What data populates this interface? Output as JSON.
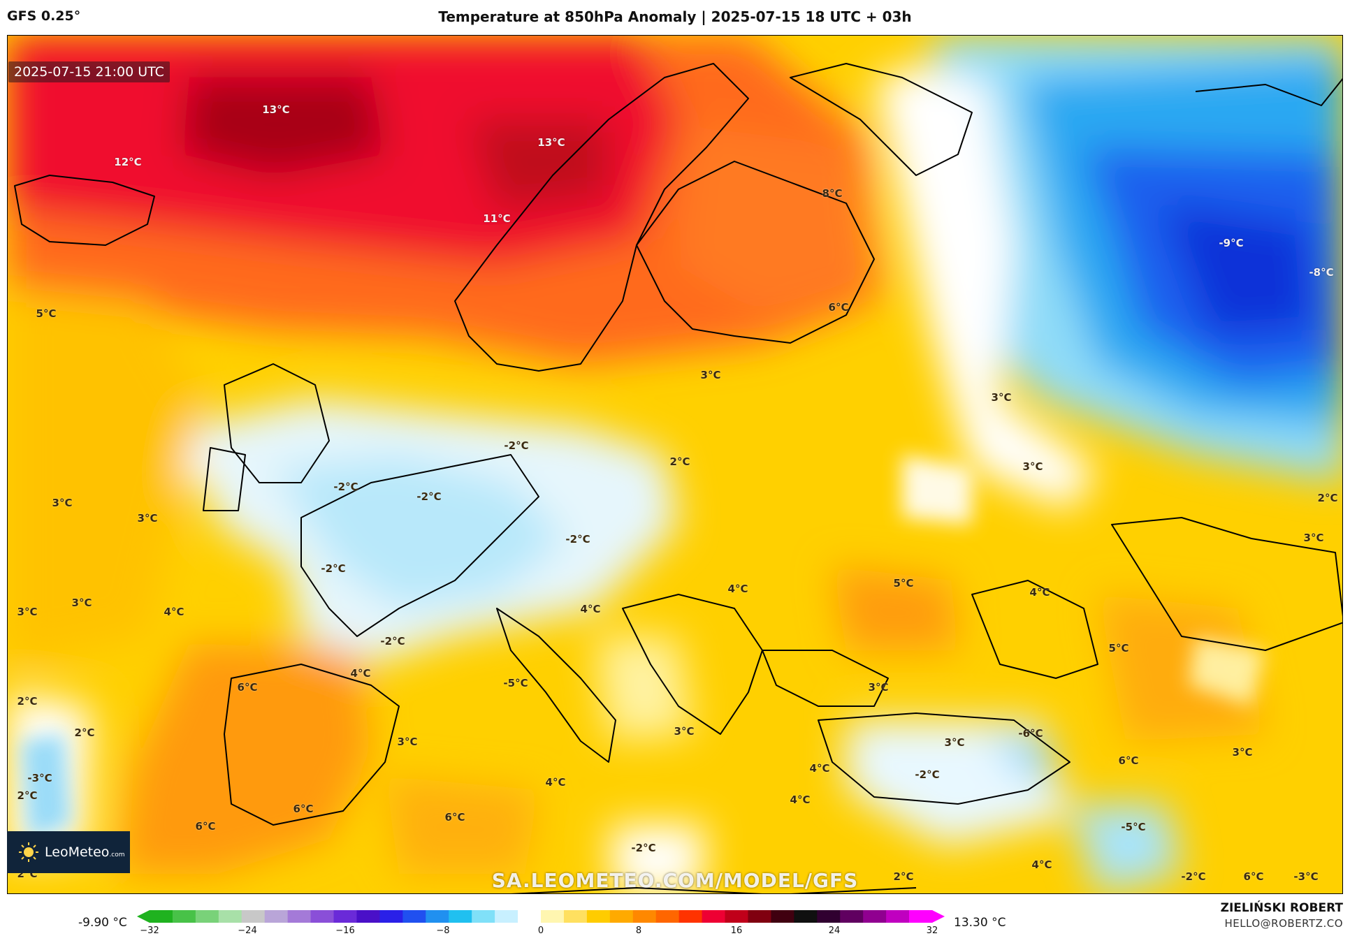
{
  "header": {
    "model": "GFS 0.25°",
    "title": "Temperature at 850hPa Anomaly | 2025-07-15 18 UTC + 03h"
  },
  "map": {
    "valid_time": "2025-07-15 21:00 UTC",
    "watermark": "SA.LEOMETEO.COM/MODEL/GFS",
    "labels": [
      "13°C",
      "13°C",
      "12°C",
      "11°C",
      "8°C",
      "6°C",
      "5°C",
      "-9°C",
      "-8°C",
      "3°C",
      "3°C",
      "3°C",
      "3°C",
      "2°C",
      "2°C",
      "-2°C",
      "-2°C",
      "-2°C",
      "-2°C",
      "-2°C",
      "-2°C",
      "3°C",
      "3°C",
      "3°C",
      "4°C",
      "3°C",
      "2°C",
      "2°C",
      "-3°C",
      "2°C",
      "2°C",
      "6°C",
      "4°C",
      "-5°C",
      "3°C",
      "4°C",
      "4°C",
      "5°C",
      "4°C",
      "5°C",
      "3°C",
      "3°C",
      "3°C",
      "-6°C",
      "-2°C",
      "6°C",
      "3°C",
      "6°C",
      "6°C",
      "6°C",
      "4°C",
      "4°C",
      "-2°C",
      "4°C",
      "-5°C",
      "2°C",
      "-2°C",
      "6°C",
      "-3°C",
      "4°C"
    ]
  },
  "logo": {
    "text": "LeoMeteo",
    "suffix": ".com"
  },
  "colorbar": {
    "min_label": "-9.90 °C",
    "max_label": "13.30 °C",
    "ticks": [
      "−32",
      "−24",
      "−16",
      "−8",
      "0",
      "8",
      "16",
      "24",
      "32"
    ],
    "colors": [
      "#1fb21f",
      "#48c248",
      "#79d279",
      "#a8e0a8",
      "#c8c8c8",
      "#b9a5d8",
      "#a47ad8",
      "#8a4fd8",
      "#6a2ad8",
      "#4a10c8",
      "#2a20e8",
      "#2050f0",
      "#2090f0",
      "#20c0f0",
      "#80e0f8",
      "#c8f0ff",
      "#ffffff",
      "#fff6b0",
      "#ffe060",
      "#ffcc00",
      "#ffaa00",
      "#ff8800",
      "#ff6600",
      "#ff3300",
      "#ee0033",
      "#c0001a",
      "#800010",
      "#400010",
      "#101010",
      "#300030",
      "#600060",
      "#900090",
      "#c000c0",
      "#ff00ff"
    ]
  },
  "footer": {
    "author": "ZIELIŃSKI ROBERT",
    "email": "HELLO@ROBERTZ.CO"
  }
}
